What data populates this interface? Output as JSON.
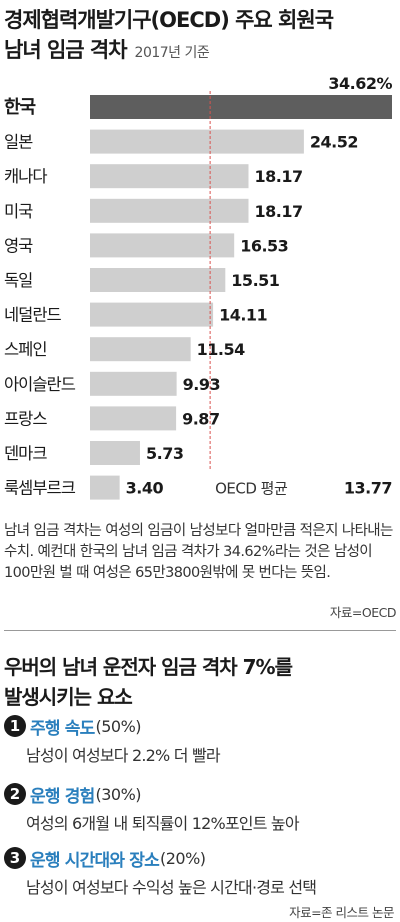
{
  "header": {
    "title_line1": "경제협력개발기구(OECD) 주요 회원국",
    "title_line2": "남녀 임금 격차",
    "subtitle": "2017년 기준"
  },
  "chart_data": {
    "type": "bar",
    "orientation": "horizontal",
    "title": "경제협력개발기구(OECD) 주요 회원국 남녀 임금 격차",
    "subtitle": "2017년 기준",
    "unit": "%",
    "categories": [
      "한국",
      "일본",
      "캐나다",
      "미국",
      "영국",
      "독일",
      "네덜란드",
      "스페인",
      "아이슬란드",
      "프랑스",
      "덴마크",
      "룩셈부르크"
    ],
    "values": [
      34.62,
      24.52,
      18.17,
      18.17,
      16.53,
      15.51,
      14.11,
      11.54,
      9.93,
      9.87,
      5.73,
      3.4
    ],
    "value_labels": [
      "34.62%",
      "24.52",
      "18.17",
      "18.17",
      "16.53",
      "15.51",
      "14.11",
      "11.54",
      "9.93",
      "9.87",
      "5.73",
      "3.40"
    ],
    "highlight_index": 0,
    "reference_line": {
      "label": "OECD 평균",
      "value": 13.77,
      "value_label": "13.77"
    },
    "xlim": [
      0,
      34.62
    ],
    "colors": {
      "bar": "#cfcfcf",
      "highlight": "#5e5e5e",
      "reference": "#d9534f"
    }
  },
  "description": "남녀 임금 격차는 여성의 임금이 남성보다 얼마만큼 적은지 나타내는 수치. 예컨대 한국의 남녀 임금 격차가 34.62%라는 것은 남성이 100만원 벌 때 여성은 65만3800원밖에 못 번다는 뜻임.",
  "source1": "자료=OECD",
  "section": {
    "title_line1": "우버의 남녀 운전자 임금 격차 7%를",
    "title_line2": "발생시키는 요소",
    "factors": [
      {
        "num": "1",
        "name": "주행 속도",
        "pct": "(50%)",
        "desc": "남성이 여성보다 2.2% 더 빨라"
      },
      {
        "num": "2",
        "name": "운행 경험",
        "pct": "(30%)",
        "desc": "여성의 6개월 내 퇴직률이 12%포인트 높아"
      },
      {
        "num": "3",
        "name": "운행 시간대와 장소",
        "pct": "(20%)",
        "desc": "남성이 여성보다 수익성 높은 시간대·경로 선택"
      }
    ]
  },
  "source2": "자료=존 리스트 논문"
}
